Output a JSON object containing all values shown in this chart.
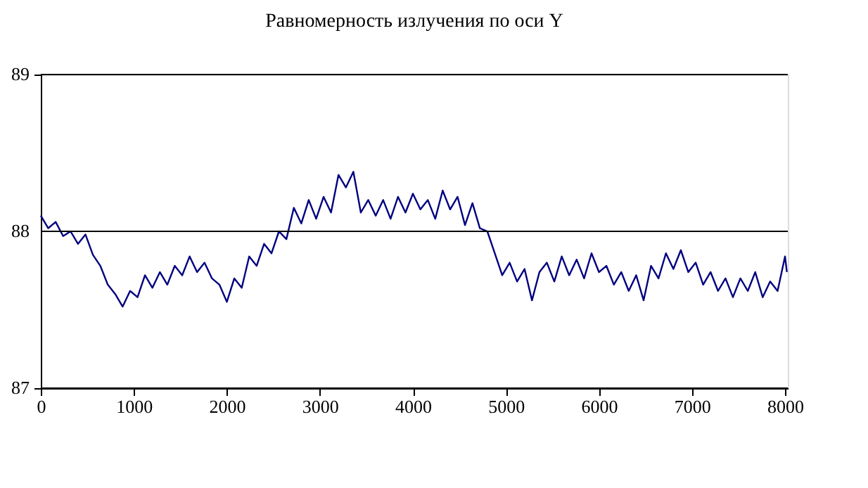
{
  "chart_data": {
    "type": "line",
    "title": "Равномерность излучения по оси Y",
    "x": [
      0,
      80,
      160,
      240,
      320,
      400,
      480,
      560,
      640,
      720,
      800,
      880,
      960,
      1040,
      1120,
      1200,
      1280,
      1360,
      1440,
      1520,
      1600,
      1680,
      1760,
      1840,
      1920,
      2000,
      2080,
      2160,
      2240,
      2320,
      2400,
      2480,
      2560,
      2640,
      2720,
      2800,
      2880,
      2960,
      3040,
      3120,
      3200,
      3280,
      3360,
      3440,
      3520,
      3600,
      3680,
      3760,
      3840,
      3920,
      4000,
      4080,
      4160,
      4240,
      4320,
      4400,
      4480,
      4560,
      4640,
      4720,
      4800,
      4880,
      4960,
      5040,
      5120,
      5200,
      5280,
      5360,
      5440,
      5520,
      5600,
      5680,
      5760,
      5840,
      5920,
      6000,
      6080,
      6160,
      6240,
      6320,
      6400,
      6480,
      6560,
      6640,
      6720,
      6800,
      6880,
      6960,
      7040,
      7120,
      7200,
      7280,
      7360,
      7440,
      7520,
      7600,
      7680,
      7760,
      7840,
      7920,
      8000,
      8020
    ],
    "series": [
      {
        "color": "#000080",
        "values": [
          88.1,
          88.02,
          88.06,
          87.97,
          88.0,
          87.92,
          87.98,
          87.85,
          87.78,
          87.66,
          87.6,
          87.52,
          87.62,
          87.58,
          87.72,
          87.64,
          87.74,
          87.66,
          87.78,
          87.72,
          87.84,
          87.74,
          87.8,
          87.7,
          87.66,
          87.55,
          87.7,
          87.64,
          87.84,
          87.78,
          87.92,
          87.86,
          88.0,
          87.95,
          88.15,
          88.05,
          88.2,
          88.08,
          88.22,
          88.12,
          88.36,
          88.28,
          88.38,
          88.12,
          88.2,
          88.1,
          88.2,
          88.08,
          88.22,
          88.12,
          88.24,
          88.14,
          88.2,
          88.08,
          88.26,
          88.14,
          88.22,
          88.04,
          88.18,
          88.02,
          88.0,
          87.86,
          87.72,
          87.8,
          87.68,
          87.76,
          87.56,
          87.74,
          87.8,
          87.68,
          87.84,
          87.72,
          87.82,
          87.7,
          87.86,
          87.74,
          87.78,
          87.66,
          87.74,
          87.62,
          87.72,
          87.56,
          87.78,
          87.7,
          87.86,
          87.76,
          87.88,
          87.74,
          87.8,
          87.66,
          87.74,
          87.62,
          87.7,
          87.58,
          87.7,
          87.62,
          87.74,
          87.58,
          87.68,
          87.62,
          87.84,
          87.74
        ]
      }
    ],
    "xlim": [
      0,
      8030
    ],
    "xticks": [
      0,
      1000,
      2000,
      3000,
      4000,
      5000,
      6000,
      7000,
      8000
    ],
    "ylim": [
      87,
      89
    ],
    "yticks": [
      87,
      88,
      89
    ],
    "grid": "y",
    "legend": false,
    "marker": "none",
    "line_style": "solid"
  }
}
